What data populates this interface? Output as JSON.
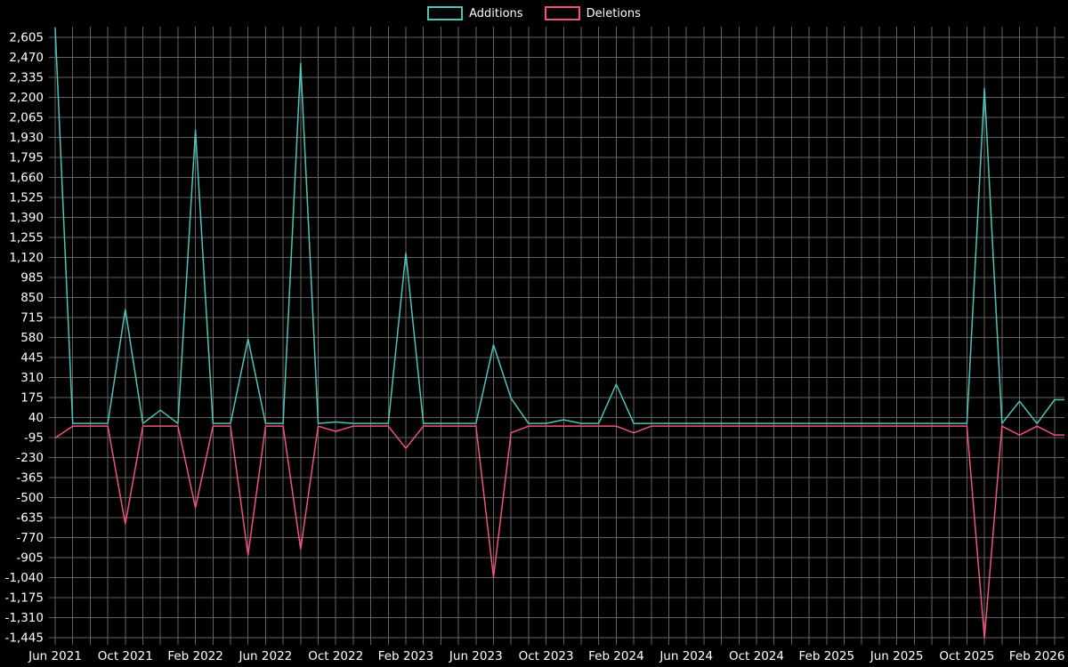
{
  "chart_data": {
    "type": "line",
    "title": "",
    "xlabel": "",
    "ylabel": "",
    "background": "#000000",
    "grid": true,
    "grid_color": "#636363",
    "text_color": "#ffffff",
    "legend_position": "top-center",
    "ylim": [
      -1445,
      2605
    ],
    "ytick_labels": [
      "2,605",
      "2,470",
      "2,335",
      "2,200",
      "2,065",
      "1,930",
      "1,795",
      "1,660",
      "1,525",
      "1,390",
      "1,255",
      "1,120",
      "985",
      "850",
      "715",
      "580",
      "445",
      "310",
      "175",
      "40",
      "-95",
      "-230",
      "-365",
      "-500",
      "-635",
      "-770",
      "-905",
      "-1,040",
      "-1,175",
      "-1,310",
      "-1,445"
    ],
    "xtick_every": 4,
    "xtick_labels_visible": [
      "Jun 2021",
      "Oct 2021",
      "Feb 2022",
      "Jun 2022",
      "Oct 2022",
      "Feb 2023",
      "Jun 2023",
      "Oct 2023",
      "Feb 2024",
      "Jun 2024",
      "Oct 2024",
      "Feb 2025",
      "Jun 2025",
      "Oct 2025",
      "Feb 2026"
    ],
    "x": [
      "Jun 2021",
      "Jul 2021",
      "Aug 2021",
      "Sep 2021",
      "Oct 2021",
      "Nov 2021",
      "Dec 2021",
      "Jan 2022",
      "Feb 2022",
      "Mar 2022",
      "Apr 2022",
      "May 2022",
      "Jun 2022",
      "Jul 2022",
      "Aug 2022",
      "Sep 2022",
      "Oct 2022",
      "Nov 2022",
      "Dec 2022",
      "Jan 2023",
      "Feb 2023",
      "Mar 2023",
      "Apr 2023",
      "May 2023",
      "Jun 2023",
      "Jul 2023",
      "Aug 2023",
      "Sep 2023",
      "Oct 2023",
      "Nov 2023",
      "Dec 2023",
      "Jan 2024",
      "Feb 2024",
      "Mar 2024",
      "Apr 2024",
      "May 2024",
      "Jun 2024",
      "Jul 2024",
      "Aug 2024",
      "Sep 2024",
      "Oct 2024",
      "Nov 2024",
      "Dec 2024",
      "Jan 2025",
      "Feb 2025",
      "Mar 2025",
      "Apr 2025",
      "May 2025",
      "Jun 2025",
      "Jul 2025",
      "Aug 2025",
      "Sep 2025",
      "Oct 2025",
      "Nov 2025",
      "Dec 2025",
      "Jan 2026",
      "Feb 2026",
      "Mar 2026"
    ],
    "series": [
      {
        "name": "Additions",
        "color": "#4ec3bb",
        "values": [
          2670,
          0,
          0,
          0,
          770,
          0,
          90,
          0,
          1980,
          0,
          0,
          570,
          0,
          0,
          2430,
          0,
          10,
          0,
          0,
          0,
          1150,
          0,
          0,
          0,
          0,
          530,
          170,
          0,
          0,
          25,
          0,
          0,
          265,
          0,
          0,
          0,
          0,
          0,
          0,
          0,
          0,
          0,
          0,
          0,
          0,
          0,
          0,
          0,
          0,
          0,
          0,
          0,
          0,
          2260,
          0,
          150,
          0,
          160
        ]
      },
      {
        "name": "Deletions",
        "color": "#f3527a",
        "values": [
          -80,
          0,
          0,
          0,
          -660,
          0,
          0,
          0,
          -550,
          0,
          0,
          -870,
          0,
          0,
          -830,
          0,
          -35,
          0,
          0,
          0,
          -150,
          0,
          0,
          0,
          0,
          -1020,
          -45,
          0,
          0,
          0,
          0,
          0,
          0,
          -45,
          0,
          0,
          0,
          0,
          0,
          0,
          0,
          0,
          0,
          0,
          0,
          0,
          0,
          0,
          0,
          0,
          0,
          0,
          0,
          -1430,
          0,
          -60,
          0,
          -60
        ]
      }
    ]
  }
}
